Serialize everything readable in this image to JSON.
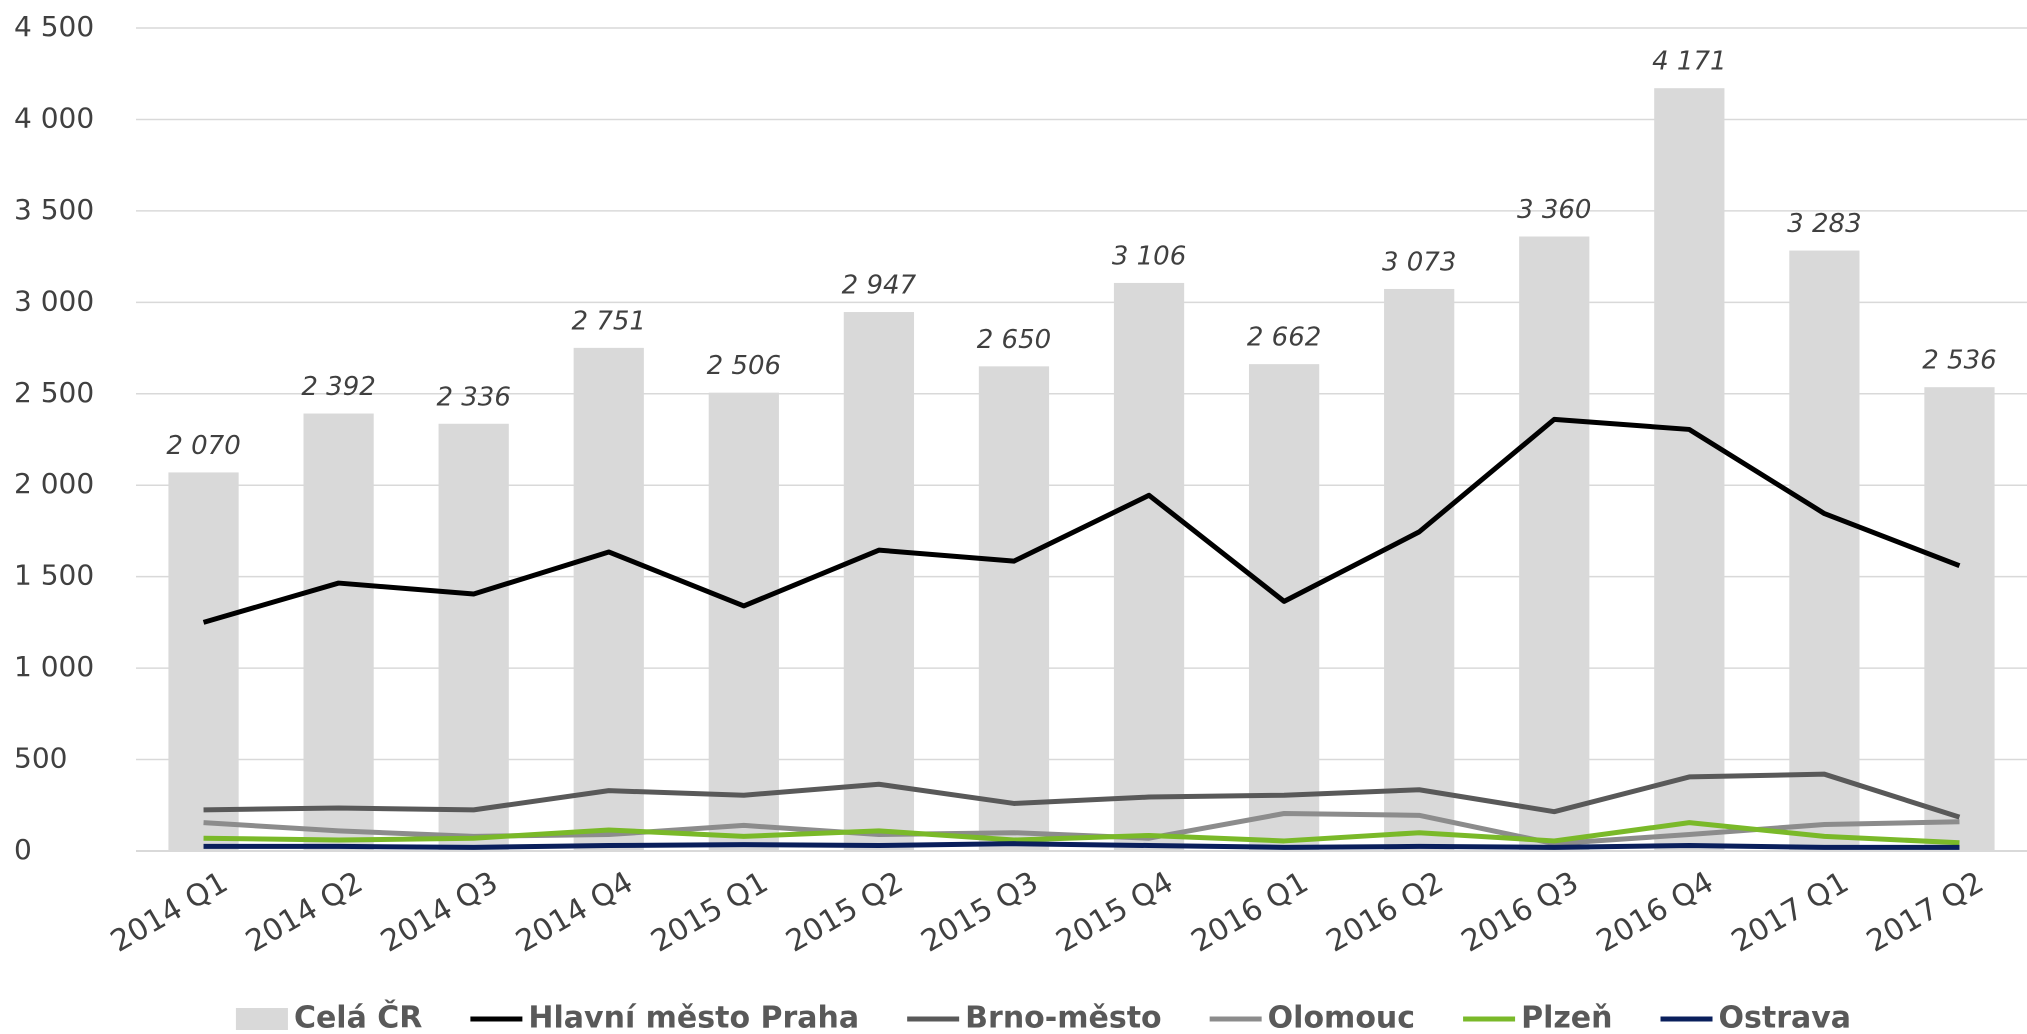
{
  "chart_data": {
    "type": "bar",
    "categories": [
      "2014 Q1",
      "2014 Q2",
      "2014 Q3",
      "2014 Q4",
      "2015 Q1",
      "2015 Q2",
      "2015 Q3",
      "2015 Q4",
      "2016 Q1",
      "2016 Q2",
      "2016 Q3",
      "2016 Q4",
      "2017 Q1",
      "2017 Q2"
    ],
    "series": [
      {
        "name": "Celá ČR",
        "type": "bar",
        "color": "#d9d9d9",
        "values": [
          2070,
          2392,
          2336,
          2751,
          2506,
          2947,
          2650,
          3106,
          2662,
          3073,
          3360,
          4171,
          3283,
          2536
        ],
        "value_labels": [
          "2 070",
          "2 392",
          "2 336",
          "2 751",
          "2 506",
          "2 947",
          "2 650",
          "3 106",
          "2 662",
          "3 073",
          "3 360",
          "4 171",
          "3 283",
          "2 536"
        ]
      },
      {
        "name": "Hlavní město Praha",
        "type": "line",
        "color": "#000000",
        "values": [
          1250,
          1465,
          1405,
          1635,
          1340,
          1645,
          1585,
          1945,
          1365,
          1745,
          2360,
          2305,
          1845,
          1560
        ]
      },
      {
        "name": "Brno-město",
        "type": "line",
        "color": "#595959",
        "values": [
          225,
          235,
          225,
          330,
          305,
          365,
          260,
          295,
          305,
          335,
          215,
          405,
          420,
          185
        ]
      },
      {
        "name": "Olomouc",
        "type": "line",
        "color": "#8c8c8c",
        "values": [
          155,
          110,
          80,
          90,
          140,
          90,
          100,
          70,
          205,
          195,
          40,
          90,
          145,
          160
        ]
      },
      {
        "name": "Plzeň",
        "type": "line",
        "color": "#7ab929",
        "values": [
          70,
          60,
          70,
          115,
          80,
          110,
          60,
          85,
          55,
          100,
          55,
          155,
          80,
          45
        ]
      },
      {
        "name": "Ostrava",
        "type": "line",
        "color": "#0a1f5c",
        "values": [
          25,
          25,
          20,
          30,
          35,
          30,
          40,
          30,
          20,
          25,
          20,
          30,
          20,
          20
        ]
      }
    ],
    "ylim": [
      0,
      4500
    ],
    "yticks": [
      0,
      500,
      {
        "value": 1000,
        "label": "1 000"
      },
      {
        "value": 1500,
        "label": "1 500"
      },
      {
        "value": 2000,
        "label": "2 000"
      },
      {
        "value": 2500,
        "label": "2 500"
      },
      {
        "value": 3000,
        "label": "3 000"
      },
      {
        "value": 3500,
        "label": "3 500"
      },
      {
        "value": 4000,
        "label": "4 000"
      },
      {
        "value": 4500,
        "label": "4 500"
      }
    ],
    "grid": true,
    "legend": "bottom"
  }
}
